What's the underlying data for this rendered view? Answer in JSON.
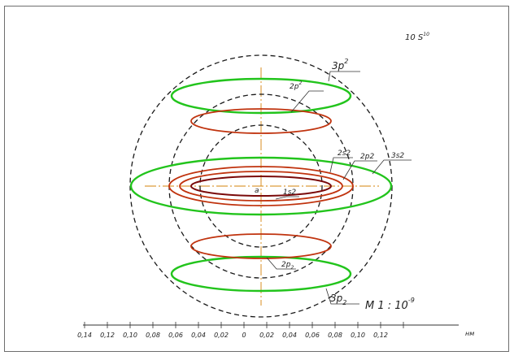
{
  "corner_note": "10 S^10",
  "corner_note_parts": {
    "base": "10 S",
    "exp": "10"
  },
  "nucleus_label": "a",
  "orbital_labels": {
    "p3_top": {
      "base": "3p",
      "sup": "2"
    },
    "p2_top": {
      "base": "2p",
      "sup": "2"
    },
    "s2_2": "2s2",
    "p2_mid": "2p2",
    "s2_3": "3s2",
    "s2_1": "1s2",
    "p2_bottom": {
      "base": "2p",
      "sub": "2"
    },
    "p3_bottom": {
      "base": "3p",
      "sub": "2"
    }
  },
  "scale_label": {
    "base": "M 1 : 10",
    "exp": "-9"
  },
  "axis_tick_labels": [
    "0,14",
    "0,12",
    "0,10",
    "0,08",
    "0,06",
    "0,04",
    "0,02",
    "0",
    "0,02",
    "0,04",
    "0,06",
    "0,08",
    "0,10",
    "0,12"
  ],
  "axis_unit": "нм",
  "colors": {
    "green": "#22c41c",
    "red": "#c0330e",
    "dark_red": "#7a0a0a",
    "dashed": "#1a1a1a",
    "axis_orange": "#d4830a",
    "frame": "#6e6e6e",
    "text": "#222222"
  }
}
